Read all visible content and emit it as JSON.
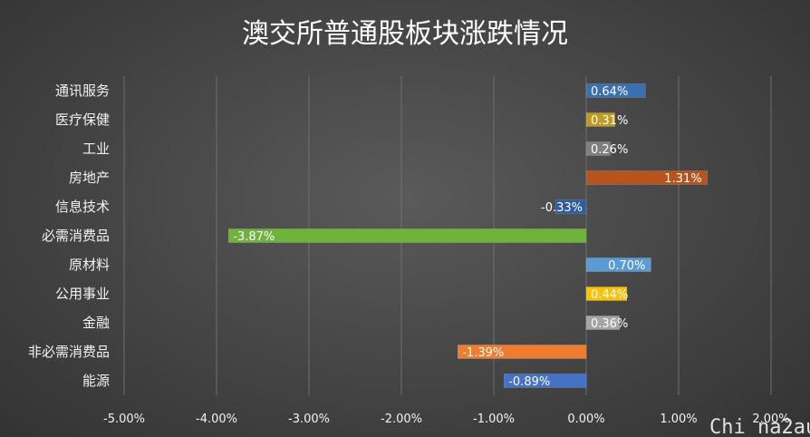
{
  "watermark": "Chi na2au",
  "chart_data": {
    "type": "bar",
    "orientation": "horizontal",
    "title": "澳交所普通股板块涨跌情况",
    "xlabel": "",
    "ylabel": "",
    "xlim": [
      -0.05,
      0.02
    ],
    "x_ticks": [
      -0.05,
      -0.04,
      -0.03,
      -0.02,
      -0.01,
      0,
      0.01,
      0.02
    ],
    "x_tick_labels": [
      "-5.00%",
      "-4.00%",
      "-3.00%",
      "-2.00%",
      "-1.00%",
      "0.00%",
      "1.00%",
      "2.00%"
    ],
    "grid": true,
    "legend": "none",
    "categories": [
      "通讯服务",
      "医疗保健",
      "工业",
      "房地产",
      "信息技术",
      "必需消费品",
      "原材料",
      "公用事业",
      "金融",
      "非必需消费品",
      "能源"
    ],
    "values": [
      0.0064,
      0.0031,
      0.0026,
      0.0131,
      -0.0033,
      -0.0387,
      0.007,
      0.0044,
      0.0036,
      -0.0139,
      -0.0089
    ],
    "data_labels": [
      "0.64%",
      "0.31%",
      "0.26%",
      "1.31%",
      "-0.33%",
      "-3.87%",
      "0.70%",
      "0.44%",
      "0.36%",
      "-1.39%",
      "-0.89%"
    ],
    "colors": [
      "#3a6fb0",
      "#c29a1e",
      "#7f7f7f",
      "#b5541c",
      "#2e5d9f",
      "#6fb23c",
      "#5b9bd5",
      "#ffc000",
      "#a5a5a5",
      "#ed7d31",
      "#4472c4"
    ]
  }
}
